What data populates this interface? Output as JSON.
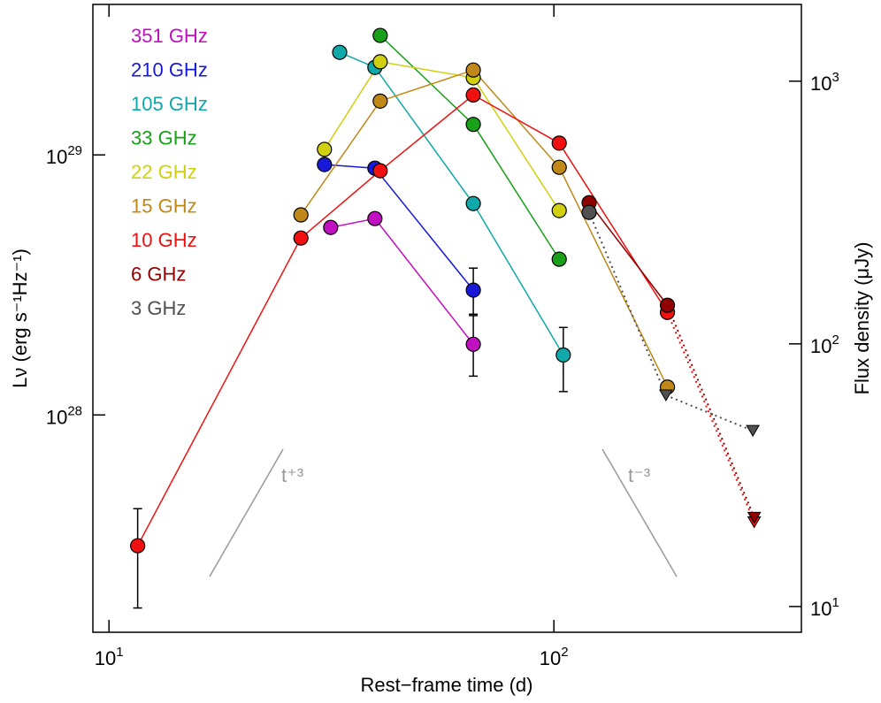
{
  "chart_data": {
    "type": "scatter",
    "xlabel": "Rest−frame time (d)",
    "ylabel": "Lν (erg s⁻¹Hz⁻¹)",
    "y2label": "Flux density (μJy)",
    "xscale": "log",
    "yscale": "log",
    "y2scale": "log",
    "xlim": [
      9.2,
      360
    ],
    "ylim": [
      1.46e+27,
      3.79e+29
    ],
    "y2lim": [
      7.98,
      1960
    ],
    "xticks": [
      {
        "value": 10,
        "base": "10",
        "exp": "1"
      },
      {
        "value": 100,
        "base": "10",
        "exp": "2"
      }
    ],
    "yticks": [
      {
        "value": 1e+28,
        "base": "10",
        "exp": "28"
      },
      {
        "value": 1e+29,
        "base": "10",
        "exp": "29"
      }
    ],
    "y2ticks": [
      {
        "value": 10,
        "base": "10",
        "exp": "1"
      },
      {
        "value": 100,
        "base": "10",
        "exp": "2"
      },
      {
        "value": 1000,
        "base": "10",
        "exp": "3"
      }
    ],
    "annotations": [
      "t⁺³",
      "t⁻³"
    ],
    "series": [
      {
        "name": "351 GHz",
        "color": "#c010c0",
        "x": [
          31.5,
          39.6,
          65.9
        ],
        "values": [
          5.26e+28,
          5.69e+28,
          1.87e+28
        ],
        "upper_limit": [
          false,
          false,
          false
        ],
        "err_lo": [
          null,
          null,
          1.41e+28
        ],
        "err_hi": [
          null,
          null,
          2.41e+28
        ]
      },
      {
        "name": "210 GHz",
        "color": "#1818d8",
        "x": [
          30.5,
          39.6,
          65.9
        ],
        "values": [
          9.18e+28,
          8.89e+28,
          3.02e+28
        ],
        "upper_limit": [
          false,
          false,
          false
        ],
        "err_lo": [
          null,
          null,
          2.44e+28
        ],
        "err_hi": [
          null,
          null,
          3.67e+28
        ]
      },
      {
        "name": "105 GHz",
        "color": "#10a8a8",
        "x": [
          33.0,
          39.6,
          65.9,
          105
        ],
        "values": [
          2.48e+29,
          2.17e+29,
          6.5e+28,
          1.7e+28
        ],
        "upper_limit": [
          false,
          false,
          false,
          false
        ],
        "err_lo": [
          null,
          null,
          null,
          1.23e+28
        ],
        "err_hi": [
          null,
          null,
          null,
          2.17e+28
        ]
      },
      {
        "name": "33 GHz",
        "color": "#18a018",
        "x": [
          40.7,
          65.9,
          102.8
        ],
        "values": [
          2.88e+29,
          1.31e+29,
          3.97e+28
        ],
        "upper_limit": [
          false,
          false,
          false
        ]
      },
      {
        "name": "22 GHz",
        "color": "#d0d010",
        "x": [
          30.5,
          40.7,
          65.9,
          102.8
        ],
        "values": [
          1.05e+29,
          2.28e+29,
          1.98e+29,
          6.11e+28
        ],
        "upper_limit": [
          false,
          false,
          false,
          false
        ]
      },
      {
        "name": "15 GHz",
        "color": "#c08818",
        "x": [
          27.0,
          40.7,
          65.9,
          102.8,
          180
        ],
        "values": [
          5.88e+28,
          1.61e+29,
          2.12e+29,
          8.96e+28,
          1.28e+28
        ],
        "upper_limit": [
          false,
          false,
          false,
          false,
          false
        ]
      },
      {
        "name": "10 GHz",
        "color": "#f01010",
        "x": [
          11.6,
          27.0,
          40.7,
          65.9,
          102.8,
          180,
          282
        ],
        "values": [
          3.14e+27,
          4.79e+28,
          8.69e+28,
          1.7e+29,
          1.11e+29,
          2.48e+28,
          3.87e+27
        ],
        "upper_limit": [
          false,
          false,
          false,
          false,
          false,
          false,
          true
        ],
        "err_lo": [
          1.81e+27,
          null,
          null,
          null,
          null,
          null,
          null
        ],
        "err_hi": [
          4.36e+27,
          null,
          null,
          null,
          null,
          null,
          null
        ]
      },
      {
        "name": "6 GHz",
        "color": "#900000",
        "x": [
          120,
          180,
          282
        ],
        "values": [
          6.55e+28,
          2.64e+28,
          4.03e+27
        ],
        "upper_limit": [
          false,
          false,
          true
        ]
      },
      {
        "name": "3 GHz",
        "color": "#505050",
        "x": [
          120,
          178.6,
          280
        ],
        "values": [
          6.01e+28,
          1.19e+28,
          8.69e+27
        ],
        "upper_limit": [
          false,
          true,
          true
        ]
      }
    ]
  }
}
